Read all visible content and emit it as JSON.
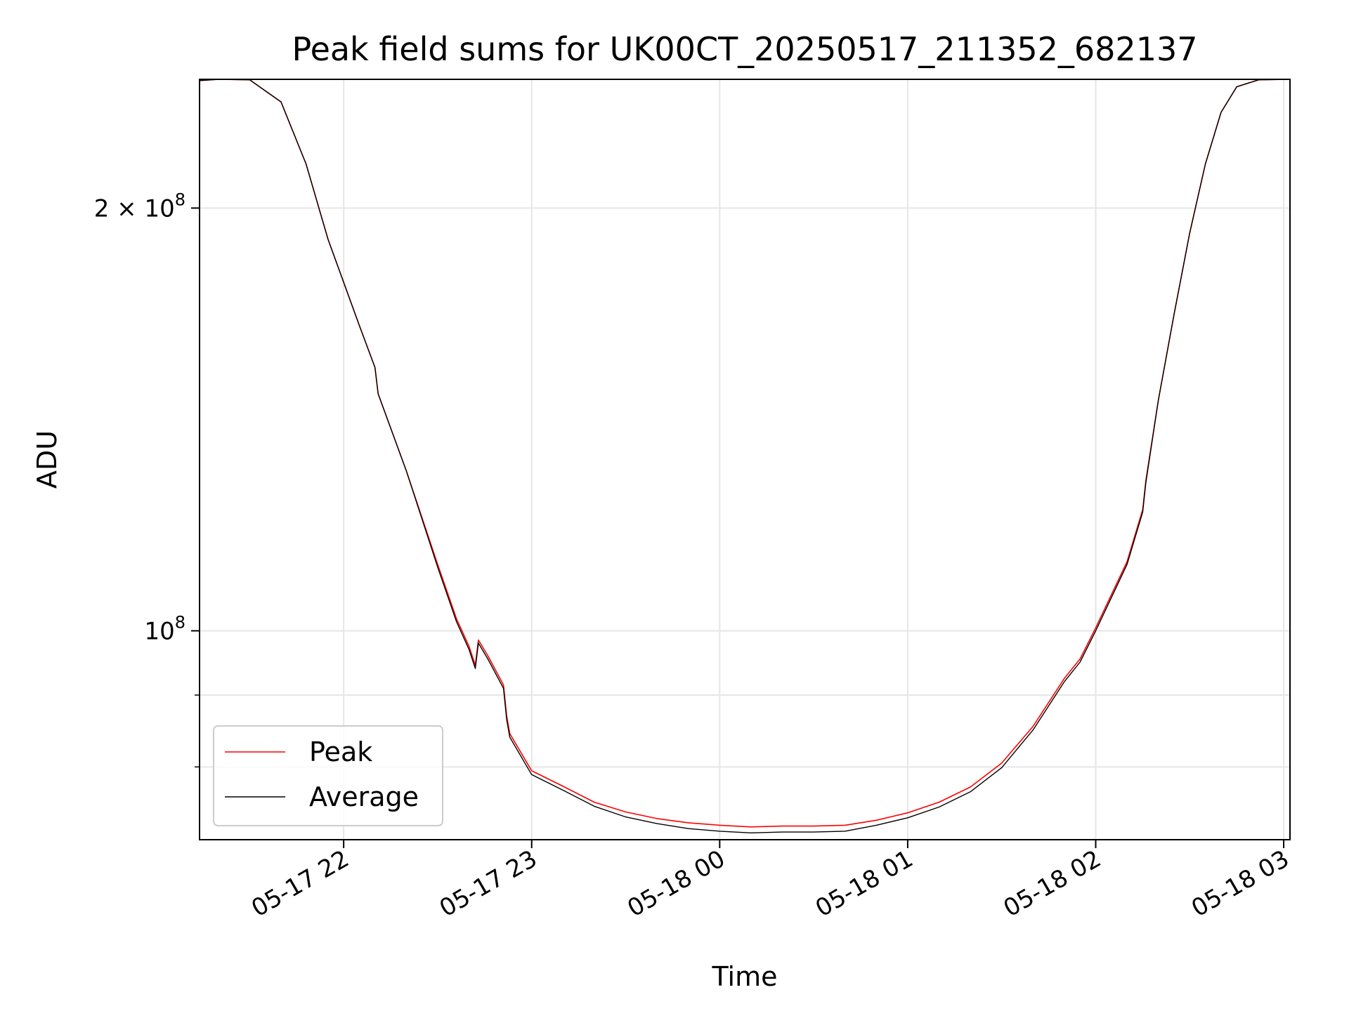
{
  "chart_data": {
    "type": "line",
    "title": "Peak field sums for UK00CT_20250517_211352_682137",
    "xlabel": "Time",
    "ylabel": "ADU",
    "yscale": "log",
    "xlim": [
      "2025-05-17T21:14",
      "2025-05-18T03:02"
    ],
    "ylim": [
      71000000,
      247000000
    ],
    "x_ticks": [
      "05-17 22",
      "05-17 23",
      "05-18 00",
      "05-18 01",
      "05-18 02",
      "05-18 03"
    ],
    "y_ticks": [
      {
        "value": 100000000,
        "base": "10",
        "exp": "8",
        "coef": ""
      },
      {
        "value": 200000000,
        "base": "10",
        "exp": "8",
        "coef": "2 × "
      }
    ],
    "y_minor_ticks": [
      80000000,
      90000000
    ],
    "grid": true,
    "legend_position": "lower-left",
    "series": [
      {
        "name": "Peak",
        "color": "#ff0000",
        "points": [
          [
            "2025-05-17T21:14",
            246500000
          ],
          [
            "2025-05-17T21:20",
            247000000
          ],
          [
            "2025-05-17T21:30",
            246800000
          ],
          [
            "2025-05-17T21:40",
            238000000
          ],
          [
            "2025-05-17T21:48",
            215000000
          ],
          [
            "2025-05-17T21:55",
            190000000
          ],
          [
            "2025-05-17T22:05",
            165000000
          ],
          [
            "2025-05-17T22:10",
            154000000
          ],
          [
            "2025-05-17T22:11",
            147500000
          ],
          [
            "2025-05-17T22:20",
            130000000
          ],
          [
            "2025-05-17T22:30",
            111500000
          ],
          [
            "2025-05-17T22:36",
            102000000
          ],
          [
            "2025-05-17T22:40",
            97500000
          ],
          [
            "2025-05-17T22:42",
            94500000
          ],
          [
            "2025-05-17T22:43",
            98500000
          ],
          [
            "2025-05-17T22:46",
            96000000
          ],
          [
            "2025-05-17T22:51",
            91500000
          ],
          [
            "2025-05-17T22:52",
            87000000
          ],
          [
            "2025-05-17T22:53",
            84500000
          ],
          [
            "2025-05-17T23:00",
            79500000
          ],
          [
            "2025-05-17T23:10",
            77500000
          ],
          [
            "2025-05-17T23:20",
            75500000
          ],
          [
            "2025-05-17T23:30",
            74300000
          ],
          [
            "2025-05-17T23:40",
            73500000
          ],
          [
            "2025-05-17T23:50",
            73000000
          ],
          [
            "2025-05-18T00:00",
            72700000
          ],
          [
            "2025-05-18T00:10",
            72500000
          ],
          [
            "2025-05-18T00:20",
            72600000
          ],
          [
            "2025-05-18T00:30",
            72600000
          ],
          [
            "2025-05-18T00:40",
            72700000
          ],
          [
            "2025-05-18T00:50",
            73300000
          ],
          [
            "2025-05-18T01:00",
            74200000
          ],
          [
            "2025-05-18T01:10",
            75500000
          ],
          [
            "2025-05-18T01:20",
            77400000
          ],
          [
            "2025-05-18T01:30",
            80500000
          ],
          [
            "2025-05-18T01:40",
            85500000
          ],
          [
            "2025-05-18T01:50",
            92500000
          ],
          [
            "2025-05-18T01:55",
            95500000
          ],
          [
            "2025-05-18T02:00",
            100500000
          ],
          [
            "2025-05-18T02:10",
            112000000
          ],
          [
            "2025-05-18T02:15",
            122000000
          ],
          [
            "2025-05-18T02:16",
            128000000
          ],
          [
            "2025-05-18T02:20",
            146000000
          ],
          [
            "2025-05-18T02:25",
            168000000
          ],
          [
            "2025-05-18T02:30",
            192000000
          ],
          [
            "2025-05-18T02:35",
            215000000
          ],
          [
            "2025-05-18T02:40",
            234000000
          ],
          [
            "2025-05-18T02:45",
            244000000
          ],
          [
            "2025-05-18T02:52",
            246800000
          ],
          [
            "2025-05-18T03:02",
            247000000
          ]
        ]
      },
      {
        "name": "Average",
        "color": "#000000",
        "points": [
          [
            "2025-05-17T21:14",
            246500000
          ],
          [
            "2025-05-17T21:20",
            247000000
          ],
          [
            "2025-05-17T21:30",
            246800000
          ],
          [
            "2025-05-17T21:40",
            238000000
          ],
          [
            "2025-05-17T21:48",
            215000000
          ],
          [
            "2025-05-17T21:55",
            190000000
          ],
          [
            "2025-05-17T22:05",
            165000000
          ],
          [
            "2025-05-17T22:10",
            154000000
          ],
          [
            "2025-05-17T22:11",
            147500000
          ],
          [
            "2025-05-17T22:20",
            130000000
          ],
          [
            "2025-05-17T22:30",
            111000000
          ],
          [
            "2025-05-17T22:36",
            101500000
          ],
          [
            "2025-05-17T22:40",
            97000000
          ],
          [
            "2025-05-17T22:42",
            94000000
          ],
          [
            "2025-05-17T22:43",
            98000000
          ],
          [
            "2025-05-17T22:46",
            95500000
          ],
          [
            "2025-05-17T22:51",
            91000000
          ],
          [
            "2025-05-17T22:52",
            86500000
          ],
          [
            "2025-05-17T22:53",
            84000000
          ],
          [
            "2025-05-17T23:00",
            79000000
          ],
          [
            "2025-05-17T23:10",
            77000000
          ],
          [
            "2025-05-17T23:20",
            75000000
          ],
          [
            "2025-05-17T23:30",
            73700000
          ],
          [
            "2025-05-17T23:40",
            72900000
          ],
          [
            "2025-05-17T23:50",
            72300000
          ],
          [
            "2025-05-18T00:00",
            72000000
          ],
          [
            "2025-05-18T00:10",
            71800000
          ],
          [
            "2025-05-18T00:20",
            71900000
          ],
          [
            "2025-05-18T00:30",
            71900000
          ],
          [
            "2025-05-18T00:40",
            72000000
          ],
          [
            "2025-05-18T00:50",
            72700000
          ],
          [
            "2025-05-18T01:00",
            73600000
          ],
          [
            "2025-05-18T01:10",
            74900000
          ],
          [
            "2025-05-18T01:20",
            76800000
          ],
          [
            "2025-05-18T01:30",
            79900000
          ],
          [
            "2025-05-18T01:40",
            85000000
          ],
          [
            "2025-05-18T01:50",
            92000000
          ],
          [
            "2025-05-18T01:55",
            95000000
          ],
          [
            "2025-05-18T02:00",
            100000000
          ],
          [
            "2025-05-18T02:10",
            111500000
          ],
          [
            "2025-05-18T02:15",
            121500000
          ],
          [
            "2025-05-18T02:16",
            127500000
          ],
          [
            "2025-05-18T02:20",
            146000000
          ],
          [
            "2025-05-18T02:25",
            168000000
          ],
          [
            "2025-05-18T02:30",
            192000000
          ],
          [
            "2025-05-18T02:35",
            215000000
          ],
          [
            "2025-05-18T02:40",
            234000000
          ],
          [
            "2025-05-18T02:45",
            244000000
          ],
          [
            "2025-05-18T02:52",
            246800000
          ],
          [
            "2025-05-18T03:02",
            247000000
          ]
        ]
      }
    ]
  }
}
